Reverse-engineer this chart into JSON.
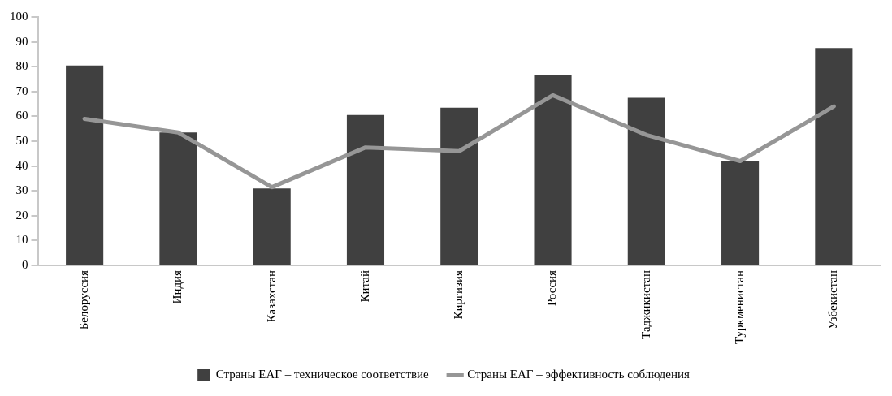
{
  "chart_data": {
    "type": "bar",
    "categories": [
      "Белоруссия",
      "Индия",
      "Казахстан",
      "Китай",
      "Киргизия",
      "Россия",
      "Таджикистан",
      "Туркменистан",
      "Узбекистан"
    ],
    "series": [
      {
        "name": "Страны ЕАГ – техническое соответствие",
        "color": "#404040",
        "values": [
          80.5,
          53.5,
          31,
          60.5,
          63.5,
          76.5,
          67.5,
          42,
          87.5
        ]
      },
      {
        "name": "Страны ЕАГ – эффективность соблюдения",
        "type": "line",
        "color": "#969696",
        "values": [
          59,
          53.5,
          31.5,
          47.5,
          46,
          68.5,
          52.5,
          42,
          64
        ]
      }
    ],
    "ylim": [
      0,
      100
    ],
    "yticks": [
      0,
      10,
      20,
      30,
      40,
      50,
      60,
      70,
      80,
      90,
      100
    ],
    "grid": false,
    "legend": "bottom",
    "marker": "none"
  }
}
